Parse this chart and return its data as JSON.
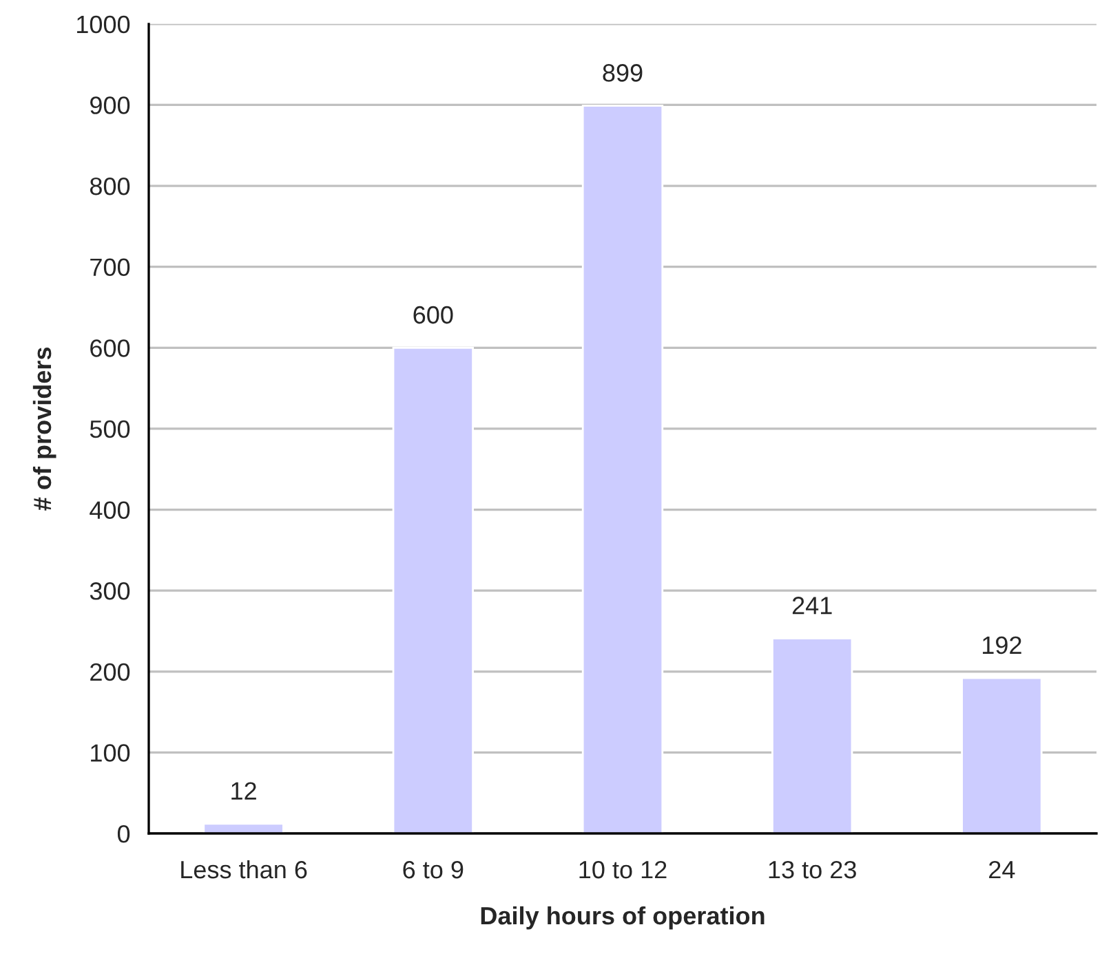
{
  "chart_data": {
    "type": "bar",
    "xlabel": "Daily hours of operation",
    "ylabel": "# of providers",
    "categories": [
      "Less than 6",
      "6 to 9",
      "10 to 12",
      "13 to 23",
      "24"
    ],
    "values": [
      12,
      600,
      899,
      241,
      192
    ],
    "color": "#ccccff",
    "ylim": [
      0,
      1000
    ],
    "yticks": [
      0,
      100,
      200,
      300,
      400,
      500,
      600,
      700,
      800,
      900,
      1000
    ],
    "grid": "y",
    "data_labels": true
  }
}
